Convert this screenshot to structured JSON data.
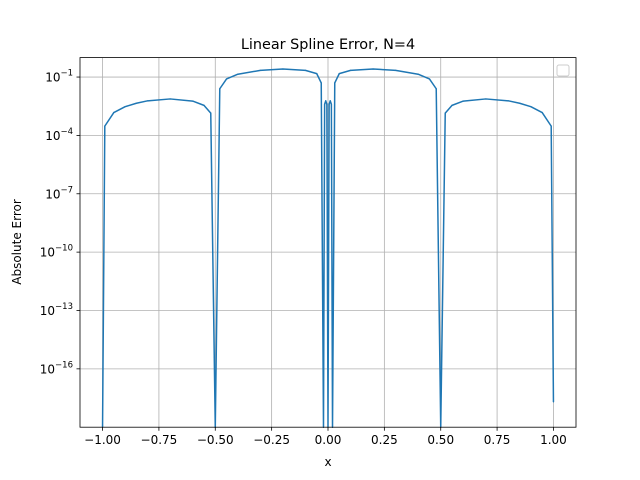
{
  "chart_data": {
    "type": "line",
    "title": "Linear Spline Error, N=4",
    "xlabel": "x",
    "ylabel": "Absolute Error",
    "xscale": "linear",
    "yscale": "log",
    "xlim": [
      -1.1,
      1.1
    ],
    "ylim": [
      1e-19,
      1.0
    ],
    "x_ticks": [
      -1.0,
      -0.75,
      -0.5,
      -0.25,
      0.0,
      0.25,
      0.5,
      0.75,
      1.0
    ],
    "x_tick_labels": [
      "−1.00",
      "−0.75",
      "−0.50",
      "−0.25",
      "0.00",
      "0.25",
      "0.50",
      "0.75",
      "1.00"
    ],
    "y_ticks": [
      1e-16,
      1e-13,
      1e-10,
      1e-07,
      0.0001,
      0.1
    ],
    "y_tick_labels": [
      {
        "base": "10",
        "exp": "−16"
      },
      {
        "base": "10",
        "exp": "−13"
      },
      {
        "base": "10",
        "exp": "−10"
      },
      {
        "base": "10",
        "exp": "−7"
      },
      {
        "base": "10",
        "exp": "−4"
      },
      {
        "base": "10",
        "exp": "−1"
      }
    ],
    "grid": true,
    "legend": {
      "placement": "top-right",
      "entries": []
    },
    "series": [
      {
        "color": "#1f77b4",
        "knots": [
          -1.0,
          -0.5,
          -0.02,
          0.0,
          0.02,
          0.5,
          1.0
        ],
        "x": [
          -1.0,
          -0.99,
          -0.95,
          -0.9,
          -0.85,
          -0.8,
          -0.7,
          -0.6,
          -0.55,
          -0.52,
          -0.5,
          -0.48,
          -0.45,
          -0.4,
          -0.3,
          -0.2,
          -0.1,
          -0.05,
          -0.03,
          -0.02,
          -0.015,
          -0.01,
          -0.005,
          0.0,
          0.005,
          0.01,
          0.015,
          0.02,
          0.03,
          0.05,
          0.1,
          0.2,
          0.3,
          0.4,
          0.45,
          0.48,
          0.5,
          0.52,
          0.55,
          0.6,
          0.7,
          0.8,
          0.85,
          0.9,
          0.95,
          0.99,
          1.0
        ],
        "y": [
          1e-19,
          0.0003,
          0.0015,
          0.003,
          0.0045,
          0.006,
          0.0075,
          0.0058,
          0.0035,
          0.0014,
          1e-19,
          0.025,
          0.08,
          0.14,
          0.22,
          0.26,
          0.22,
          0.15,
          0.05,
          1e-19,
          0.004,
          0.006,
          0.004,
          1e-19,
          0.004,
          0.006,
          0.004,
          1e-19,
          0.05,
          0.15,
          0.22,
          0.26,
          0.22,
          0.14,
          0.08,
          0.025,
          1e-19,
          0.0014,
          0.0035,
          0.0058,
          0.0075,
          0.006,
          0.0045,
          0.003,
          0.0015,
          0.0003,
          2e-18
        ]
      }
    ]
  }
}
